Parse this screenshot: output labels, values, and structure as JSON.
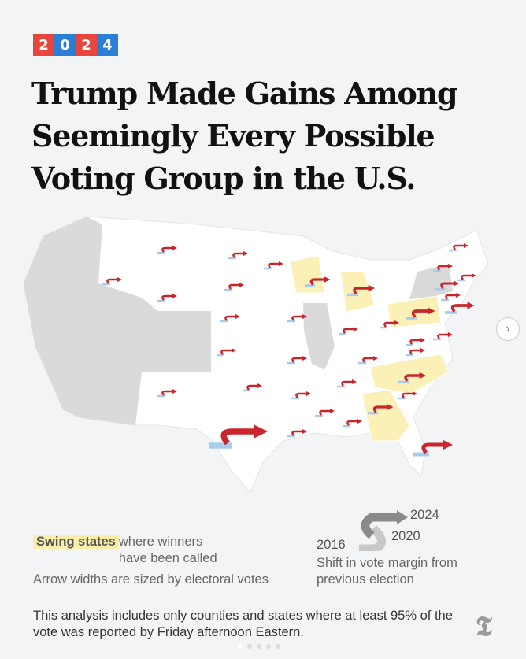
{
  "badge": {
    "digits": [
      "2",
      "0",
      "2",
      "4"
    ],
    "colors": [
      "#e8453c",
      "#2a7fd4",
      "#e8453c",
      "#2a7fd4"
    ]
  },
  "title": "Trump Made Gains Among Seemingly Every Possible Voting Group in the U.S.",
  "legend": {
    "swing_label": "Swing states",
    "swing_text": " where winners have been called",
    "width_note": "Arrow widths are sized by electoral votes",
    "year_2016": "2016",
    "year_2020": "2020",
    "year_2024": "2024",
    "shift_text": "Shift in vote margin from previous election"
  },
  "note": "This analysis includes only counties and states where at least 95% of the vote was reported by Friday afternoon Eastern.",
  "logo": "T",
  "carousel": {
    "next_icon": "chevron-right-icon",
    "page": 1,
    "pages": 5
  },
  "colors": {
    "red": "#c8262d",
    "pink": "#efb3b3",
    "blue": "#a9cde8",
    "swing": "#fbf1b6",
    "gray": "#d9d9d9"
  }
}
